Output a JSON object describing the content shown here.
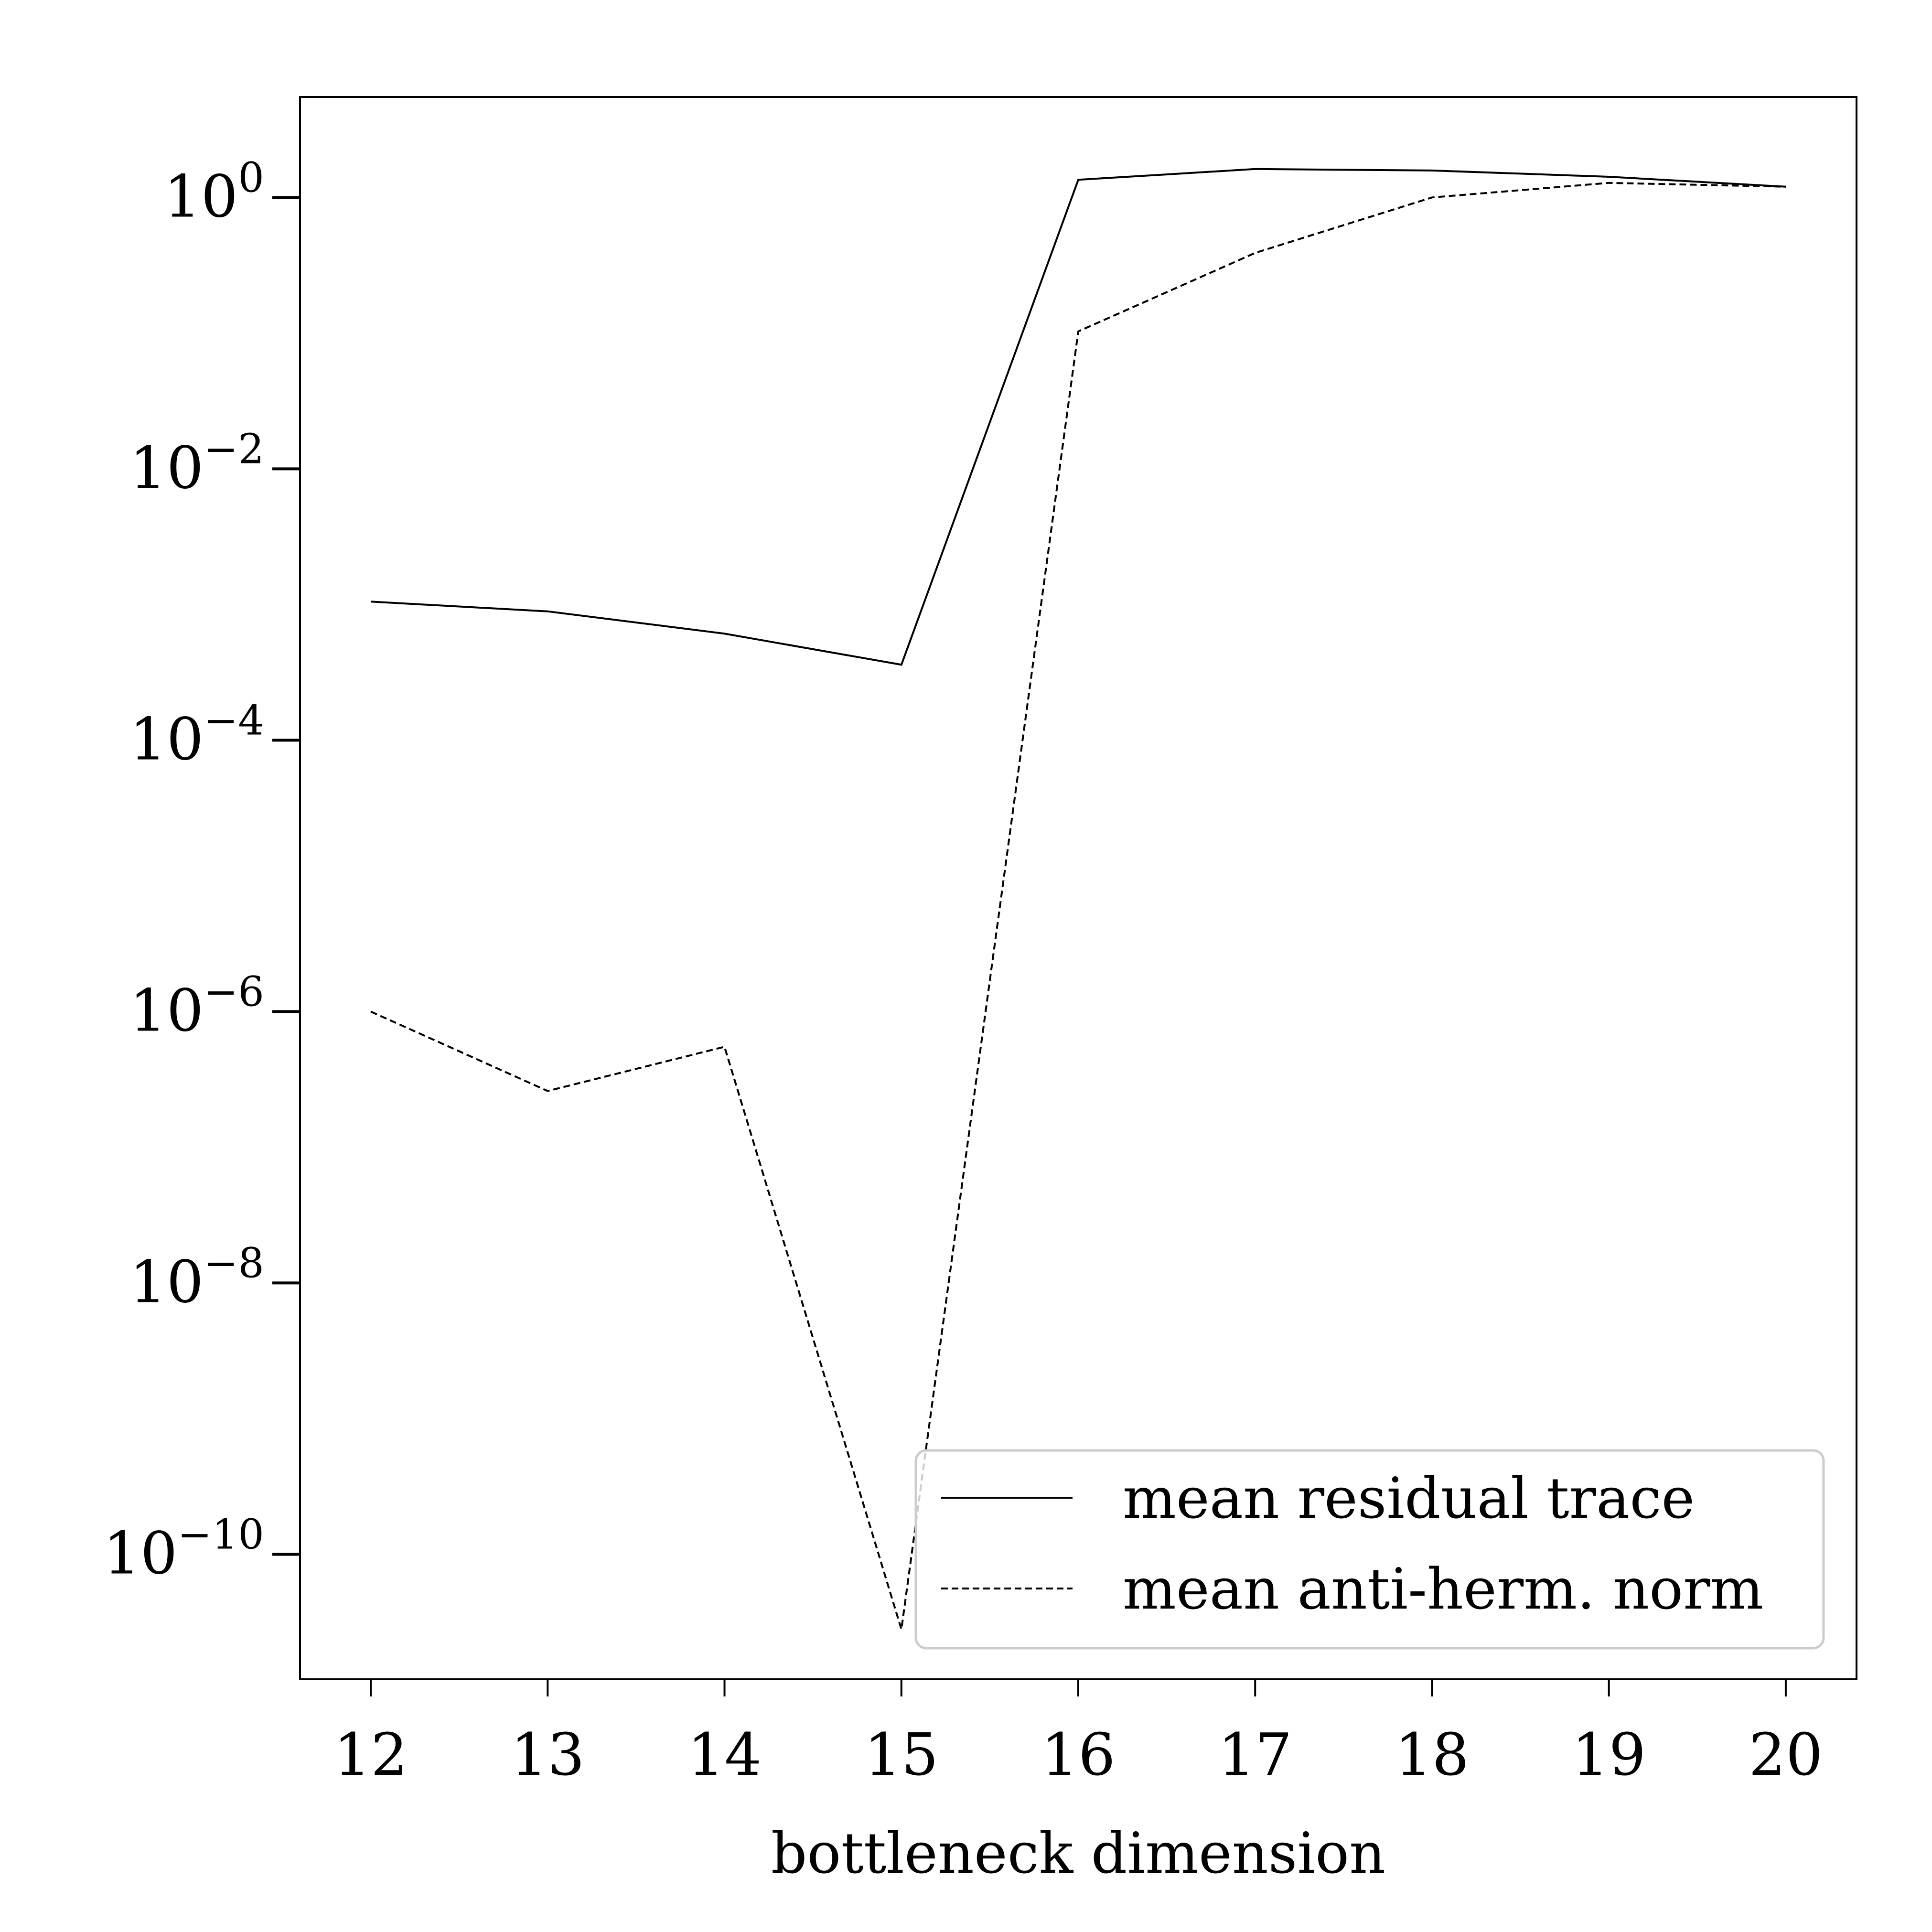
{
  "chart_data": {
    "type": "line",
    "title": "",
    "xlabel": "bottleneck dimension",
    "ylabel": "",
    "yscale": "log",
    "x": [
      12,
      13,
      14,
      15,
      16,
      17,
      18,
      19,
      20
    ],
    "xlim": [
      11.6,
      20.4
    ],
    "ylim": [
      1.2e-11,
      5.5
    ],
    "xticks": [
      "12",
      "13",
      "14",
      "15",
      "16",
      "17",
      "18",
      "19",
      "20"
    ],
    "yticks": [
      {
        "value": 1,
        "base": "10",
        "exponent": "0"
      },
      {
        "value": 0.01,
        "base": "10",
        "exponent": "−2"
      },
      {
        "value": 0.0001,
        "base": "10",
        "exponent": "−4"
      },
      {
        "value": 1e-06,
        "base": "10",
        "exponent": "−6"
      },
      {
        "value": 1e-08,
        "base": "10",
        "exponent": "−8"
      },
      {
        "value": 1e-10,
        "base": "10",
        "exponent": "−10"
      }
    ],
    "series": [
      {
        "name": "mean residual trace",
        "style": "solid",
        "color": "#000000",
        "values": [
          0.00105,
          0.00089,
          0.00061,
          0.00036,
          1.35,
          1.62,
          1.58,
          1.42,
          1.2
        ]
      },
      {
        "name": "mean anti-herm. norm",
        "style": "dashed",
        "color": "#000000",
        "values": [
          1e-06,
          2.6e-07,
          5.5e-07,
          2.8e-11,
          0.103,
          0.39,
          1.0,
          1.28,
          1.2
        ]
      }
    ],
    "legend": {
      "position": "lower-right",
      "entries": [
        "mean residual trace",
        "mean anti-herm. norm"
      ]
    },
    "grid": false
  }
}
